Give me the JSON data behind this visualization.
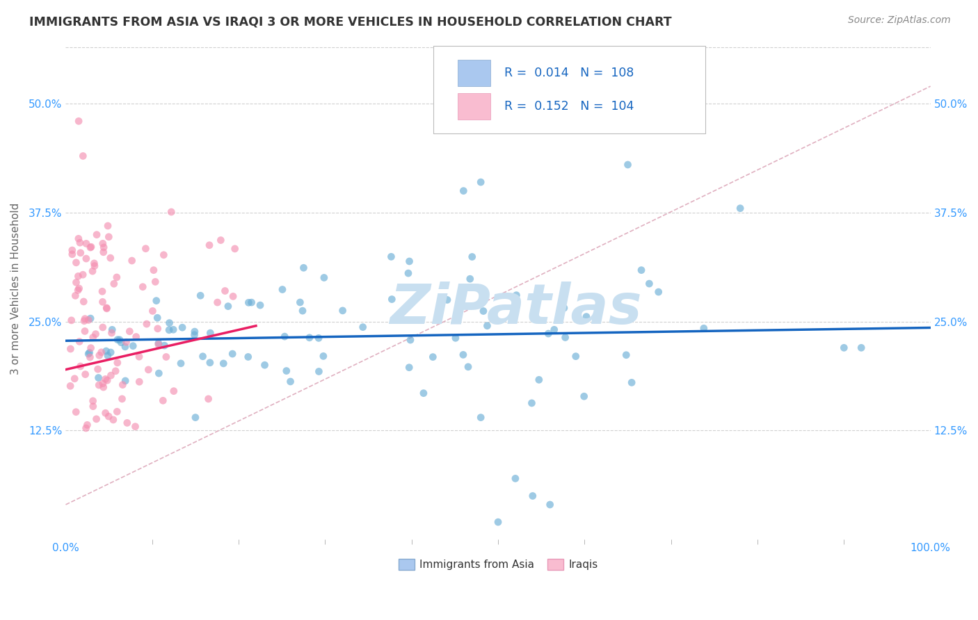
{
  "title": "IMMIGRANTS FROM ASIA VS IRAQI 3 OR MORE VEHICLES IN HOUSEHOLD CORRELATION CHART",
  "source": "Source: ZipAtlas.com",
  "ylabel": "3 or more Vehicles in Household",
  "xlim": [
    0.0,
    1.0
  ],
  "ylim": [
    0.0,
    0.575
  ],
  "yticks": [
    0.125,
    0.25,
    0.375,
    0.5
  ],
  "yticklabels": [
    "12.5%",
    "25.0%",
    "37.5%",
    "50.0%"
  ],
  "xtick_left": "0.0%",
  "xtick_right": "100.0%",
  "legend_R1": "0.014",
  "legend_N1": "108",
  "legend_R2": "0.152",
  "legend_N2": "104",
  "legend_label1": "Immigrants from Asia",
  "legend_label2": "Iraqis",
  "blue_color": "#6baed6",
  "pink_color": "#f48fb1",
  "blue_line_color": "#1565c0",
  "pink_line_color": "#e91e63",
  "dash_color": "#e0b0c0",
  "grid_color": "#d0d0d0",
  "bg_color": "#ffffff",
  "title_color": "#333333",
  "source_color": "#888888",
  "tick_color": "#3399ff",
  "watermark_color": "#c8dff0",
  "legend_text_color": "#333333",
  "legend_RN_color": "#1565c0"
}
